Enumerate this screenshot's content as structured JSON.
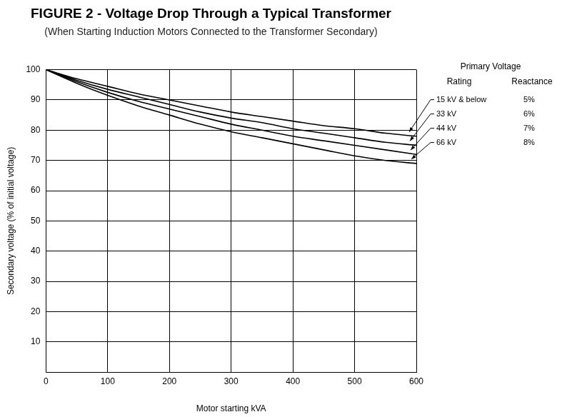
{
  "chart_data": {
    "type": "line",
    "title": "FIGURE 2 - Voltage Drop Through a Typical Transformer",
    "subtitle": "(When Starting Induction Motors Connected to the Transformer Secondary)",
    "x_label": "Motor starting kVA",
    "y_label": "Secondary voltage (% of initial voltage)",
    "legend_title": "Primary Voltage",
    "legend_columns": [
      "Rating",
      "Reactance"
    ],
    "x": [
      0,
      50,
      100,
      150,
      200,
      250,
      300,
      350,
      400,
      450,
      500,
      550,
      600
    ],
    "series": [
      {
        "name": "15 kV & below",
        "reactance": "5%",
        "color": "#000000",
        "values": [
          100,
          97,
          94.5,
          92,
          90,
          88,
          86,
          84.5,
          83,
          81.5,
          80.5,
          79,
          78
        ]
      },
      {
        "name": "33 kV",
        "reactance": "6%",
        "color": "#000000",
        "values": [
          100,
          96.5,
          93.5,
          91,
          88.5,
          86,
          84,
          82.5,
          80.5,
          79,
          77.5,
          76,
          75
        ]
      },
      {
        "name": "44 kV",
        "reactance": "7%",
        "color": "#000000",
        "values": [
          100,
          96,
          92.5,
          89.5,
          87,
          84.5,
          82,
          80,
          78,
          76.5,
          75,
          73.5,
          72
        ]
      },
      {
        "name": "66 kV",
        "reactance": "8%",
        "color": "#000000",
        "values": [
          100,
          95.5,
          91.5,
          88,
          85,
          82,
          79.5,
          77.5,
          75.5,
          73.5,
          71.5,
          70,
          69
        ]
      }
    ],
    "xlim": [
      0,
      600
    ],
    "xticks": [
      0,
      100,
      200,
      300,
      400,
      500,
      600
    ],
    "ylim": [
      0,
      100
    ],
    "yticks": [
      10,
      20,
      30,
      40,
      50,
      60,
      70,
      80,
      90,
      100
    ],
    "grid": true
  }
}
